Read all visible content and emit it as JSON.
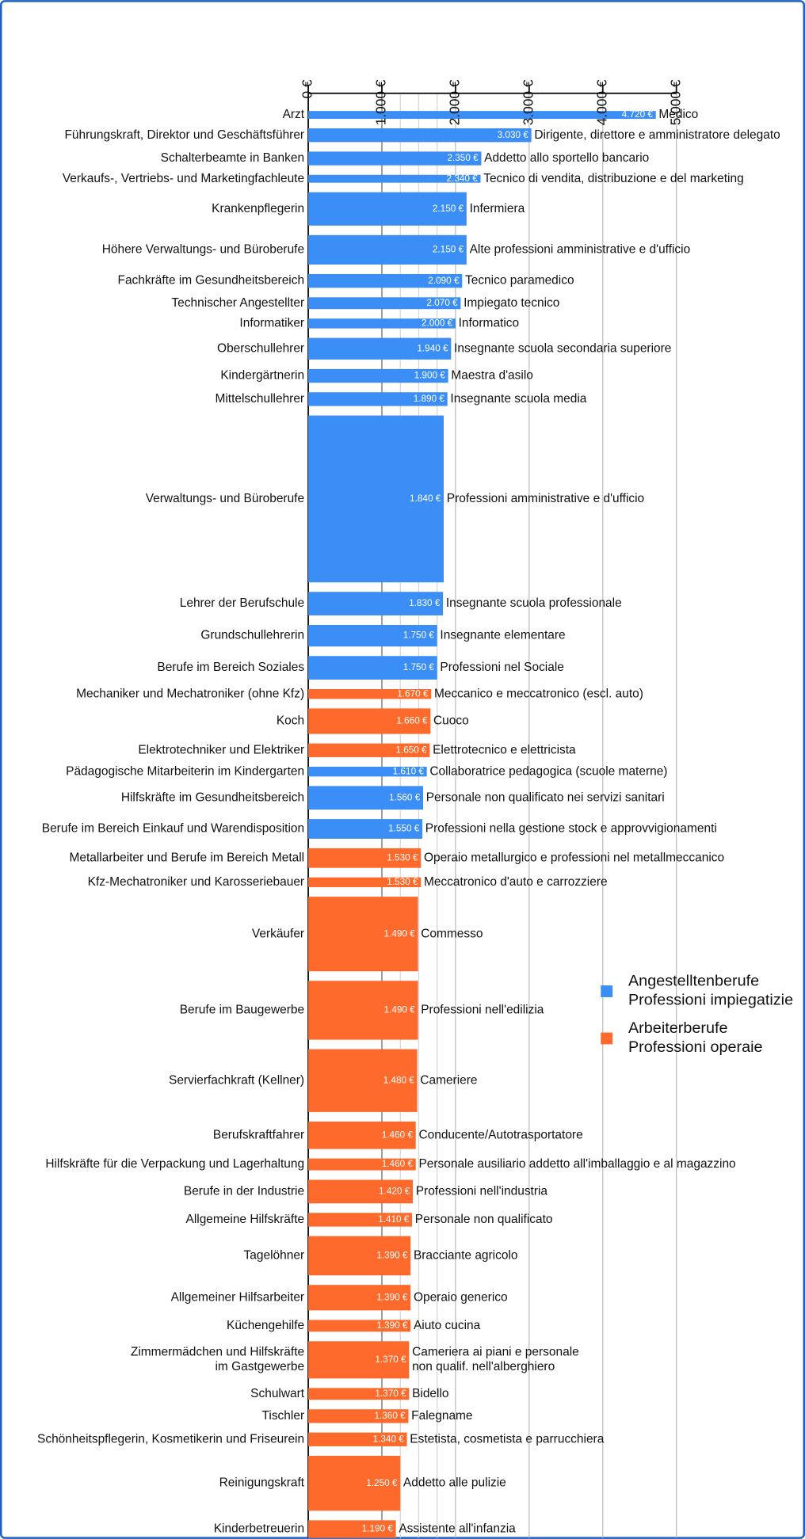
{
  "chart_data": {
    "type": "bar",
    "orientation": "horizontal",
    "categories": [
      "Arzt",
      "Führungskraft, Direktor und Geschäftsführer",
      "Schalterbeamte in Banken",
      "Verkaufs-, Vertriebs- und Marketingfachleute",
      "Krankenpflegerin",
      "Höhere Verwaltungs- und Büroberufe",
      "Fachkräfte im Gesundheitsbereich",
      "Technischer Angestellter",
      "Informatiker",
      "Oberschullehrer",
      "Kindergärtnerin",
      "Mittelschullehrer",
      "Verwaltungs- und Büroberufe",
      "Lehrer der Berufschule",
      "Grundschullehrerin",
      "Berufe im Bereich Soziales",
      "Mechaniker und Mechatroniker (ohne Kfz)",
      "Koch",
      "Elektrotechniker und Elektriker",
      "Pädagogische Mitarbeiterin im Kindergarten",
      "Hilfskräfte im Gesundheitsbereich",
      "Berufe im Bereich Einkauf und Warendisposition",
      "Metallarbeiter und Berufe im Bereich Metall",
      "Kfz-Mechatroniker und Karosseriebauer",
      "Verkäufer",
      "Berufe im Baugewerbe",
      "Servierfachkraft (Kellner)",
      "Berufskraftfahrer",
      "Hilfskräfte für die Verpackung und Lagerhaltung",
      "Berufe in der Industrie",
      "Allgemeine Hilfskräfte",
      "Tagelöhner",
      "Allgemeiner Hilfsarbeiter",
      "Küchengehilfe",
      [
        "Zimmermädchen und Hilfskräfte",
        "im Gastgewerbe"
      ],
      "Schulwart",
      "Tischler",
      "Schönheitspflegerin, Kosmetikerin und Friseurein",
      "Reinigungskraft",
      "Kinderbetreuerin"
    ],
    "secondary_labels": [
      "Medico",
      "Dirigente, direttore e amministratore delegato",
      "Addetto allo sportello bancario",
      "Tecnico di vendita, distribuzione e del marketing",
      "Infermiera",
      "Alte professioni amministrative e d'ufficio",
      "Tecnico paramedico",
      "Impiegato tecnico",
      "Informatico",
      "Insegnante scuola secondaria superiore",
      "Maestra d'asilo",
      "Insegnante scuola media",
      "Professioni amministrative e d'ufficio",
      "Insegnante scuola professionale",
      "Insegnante elementare",
      "Professioni nel Sociale",
      "Meccanico e meccatronico (escl. auto)",
      "Cuoco",
      "Elettrotecnico e elettricista",
      "Collaboratrice pedagogica (scuole materne)",
      "Personale non qualificato nei servizi sanitari",
      "Professioni nella gestione stock e approvvigionamenti",
      "Operaio metallurgico e professioni nel metallmeccanico",
      "Meccatronico d'auto e carrozziere",
      "Commesso",
      "Professioni nell'edilizia",
      "Cameriere",
      "Conducente/Autotrasportatore",
      "Personale ausiliario addetto all'imballaggio e al magazzino",
      "Professioni nell'industria",
      "Personale non qualificato",
      "Bracciante agricolo",
      "Operaio generico",
      "Aiuto cucina",
      [
        "Cameriera ai piani e personale",
        "non qualif. nell'alberghiero"
      ],
      "Bidello",
      "Falegname",
      "Estetista, cosmetista e parrucchiera",
      "Addetto alle pulizie",
      "Assistente all'infanzia"
    ],
    "sizes": [
      8,
      14,
      14,
      8,
      34,
      30,
      14,
      12,
      10,
      22,
      14,
      14,
      170,
      24,
      22,
      24,
      10,
      26,
      14,
      10,
      24,
      20,
      20,
      10,
      76,
      60,
      64,
      28,
      12,
      24,
      14,
      40,
      26,
      12,
      38,
      12,
      14,
      14,
      56,
      18
    ],
    "series": [
      {
        "name": [
          "Angestelltenberufe",
          "Professioni impiegatizie"
        ],
        "color": "#3b8ef6",
        "values": [
          4720,
          3030,
          2350,
          2340,
          2150,
          2150,
          2090,
          2070,
          2000,
          1940,
          1900,
          1890,
          1840,
          1830,
          1750,
          1750,
          null,
          null,
          null,
          1610,
          1560,
          1550,
          null,
          null,
          null,
          null,
          null,
          null,
          null,
          null,
          null,
          null,
          null,
          null,
          null,
          null,
          null,
          null,
          null,
          null
        ],
        "value_labels": [
          "4.720 €",
          "3.030 €",
          "2.350 €",
          "2.340 €",
          "2.150 €",
          "2.150 €",
          "2.090 €",
          "2.070 €",
          "2.000 €",
          "1.940 €",
          "1.900 €",
          "1.890 €",
          "1.840 €",
          "1.830 €",
          "1.750 €",
          "1.750 €",
          null,
          null,
          null,
          "1.610 €",
          "1.560 €",
          "1.550 €",
          null,
          null,
          null,
          null,
          null,
          null,
          null,
          null,
          null,
          null,
          null,
          null,
          null,
          null,
          null,
          null,
          null,
          null
        ]
      },
      {
        "name": [
          "Arbeiterberufe",
          "Professioni operaie"
        ],
        "color": "#fe6a2b",
        "values": [
          null,
          null,
          null,
          null,
          null,
          null,
          null,
          null,
          null,
          null,
          null,
          null,
          null,
          null,
          null,
          null,
          1670,
          1660,
          1650,
          null,
          null,
          null,
          1530,
          1530,
          1490,
          1490,
          1480,
          1460,
          1460,
          1420,
          1410,
          1390,
          1390,
          1390,
          1370,
          1370,
          1360,
          1340,
          1250,
          1190
        ],
        "value_labels": [
          null,
          null,
          null,
          null,
          null,
          null,
          null,
          null,
          null,
          null,
          null,
          null,
          null,
          null,
          null,
          null,
          "1.670 €",
          "1.660 €",
          "1.650 €",
          null,
          null,
          null,
          "1.530 €",
          "1.530 €",
          "1.490 €",
          "1.490 €",
          "1.480 €",
          "1.460 €",
          "1.460 €",
          "1.420 €",
          "1.410 €",
          "1.390 €",
          "1.390 €",
          "1.390 €",
          "1.370 €",
          "1.370 €",
          "1.360 €",
          "1.340 €",
          "1.250 €",
          "1.190 €"
        ]
      }
    ],
    "xlim": [
      0,
      5000
    ],
    "xticks": [
      {
        "value": 0,
        "label": "0 €"
      },
      {
        "value": 1000,
        "label": "1.000 €"
      },
      {
        "value": 2000,
        "label": "2.000 €"
      },
      {
        "value": 3000,
        "label": "3.000 €"
      },
      {
        "value": 4000,
        "label": "4.000 €"
      },
      {
        "value": 5000,
        "label": "5.000 €"
      }
    ],
    "minor_gridlines": [
      1250,
      1500,
      1750
    ],
    "legend": "right"
  }
}
